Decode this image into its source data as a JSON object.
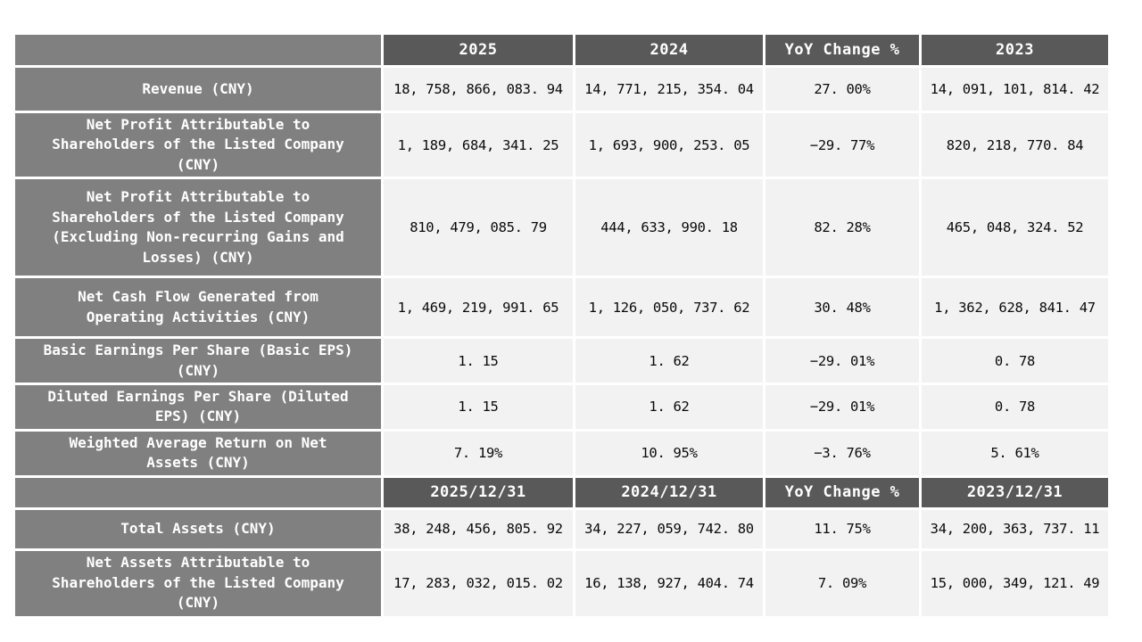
{
  "colors": {
    "column_header_bg": "#595959",
    "row_label_bg": "#808080",
    "value_cell_bg": "#f2f2f2",
    "header_text": "#ffffff",
    "value_text": "#0a0a0a",
    "grid_gap": "#ffffff"
  },
  "chart_data": {
    "type": "table",
    "sections": [
      {
        "columns": [
          "",
          "2025",
          "2024",
          "YoY Change %",
          "2023"
        ],
        "rows": [
          {
            "label": "Revenue (CNY)",
            "values": [
              "18,758,866,083.94",
              "14,771,215,354.04",
              "27.00%",
              "14,091,101,814.42"
            ]
          },
          {
            "label": "Net Profit Attributable to Shareholders of the Listed Company (CNY)",
            "values": [
              "1,189,684,341.25",
              "1,693,900,253.05",
              "-29.77%",
              "820,218,770.84"
            ]
          },
          {
            "label": "Net Profit Attributable to Shareholders of the Listed Company (Excluding Non-recurring Gains and Losses) (CNY)",
            "values": [
              "810,479,085.79",
              "444,633,990.18",
              "82.28%",
              "465,048,324.52"
            ]
          },
          {
            "label": "Net Cash Flow Generated from Operating Activities (CNY)",
            "values": [
              "1,469,219,991.65",
              "1,126,050,737.62",
              "30.48%",
              "1,362,628,841.47"
            ]
          },
          {
            "label": "Basic Earnings Per Share (Basic EPS) (CNY)",
            "values": [
              "1.15",
              "1.62",
              "-29.01%",
              "0.78"
            ]
          },
          {
            "label": "Diluted Earnings Per Share (Diluted EPS) (CNY)",
            "values": [
              "1.15",
              "1.62",
              "-29.01%",
              "0.78"
            ]
          },
          {
            "label": "Weighted Average Return on Net Assets (CNY)",
            "values": [
              "7.19%",
              "10.95%",
              "-3.76%",
              "5.61%"
            ]
          }
        ]
      },
      {
        "columns": [
          "",
          "2025/12/31",
          "2024/12/31",
          "YoY Change %",
          "2023/12/31"
        ],
        "rows": [
          {
            "label": "Total Assets (CNY)",
            "values": [
              "38,248,456,805.92",
              "34,227,059,742.80",
              "11.75%",
              "34,200,363,737.11"
            ]
          },
          {
            "label": "Net Assets Attributable to Shareholders of the Listed Company (CNY)",
            "values": [
              "17,283,032,015.02",
              "16,138,927,404.74",
              "7.09%",
              "15,000,349,121.49"
            ]
          }
        ]
      }
    ]
  },
  "table": {
    "sections": [
      {
        "header": {
          "corner": "",
          "cells": [
            "2025",
            "2024",
            "YoY Change %",
            "2023"
          ]
        },
        "rows": [
          {
            "label": "Revenue (CNY)",
            "values": [
              "18, 758, 866, 083. 94",
              "14, 771, 215, 354. 04",
              "27. 00%",
              "14, 091, 101, 814. 42"
            ]
          },
          {
            "label": "Net Profit Attributable to\nShareholders of the Listed Company\n(CNY)",
            "values": [
              "1, 189, 684, 341. 25",
              "1, 693, 900, 253. 05",
              "−29. 77%",
              "820, 218, 770. 84"
            ]
          },
          {
            "label": "Net Profit Attributable to\nShareholders of the Listed Company\n(Excluding Non-recurring Gains and\nLosses) (CNY)",
            "values": [
              "810, 479, 085. 79",
              "444, 633, 990. 18",
              "82. 28%",
              "465, 048, 324. 52"
            ]
          },
          {
            "label": "Net Cash Flow Generated from\nOperating Activities (CNY)",
            "values": [
              "1, 469, 219, 991. 65",
              "1, 126, 050, 737. 62",
              "30. 48%",
              "1, 362, 628, 841. 47"
            ]
          },
          {
            "label": "Basic Earnings Per Share (Basic EPS)\n(CNY)",
            "values": [
              "1. 15",
              "1. 62",
              "−29. 01%",
              "0. 78"
            ]
          },
          {
            "label": "Diluted Earnings Per Share (Diluted\nEPS) (CNY)",
            "values": [
              "1. 15",
              "1. 62",
              "−29. 01%",
              "0. 78"
            ]
          },
          {
            "label": "Weighted Average Return on Net\nAssets (CNY)",
            "values": [
              "7. 19%",
              "10. 95%",
              "−3. 76%",
              "5. 61%"
            ]
          }
        ]
      },
      {
        "header": {
          "corner": "",
          "cells": [
            "2025/12/31",
            "2024/12/31",
            "YoY Change %",
            "2023/12/31"
          ]
        },
        "rows": [
          {
            "label": "Total Assets (CNY)",
            "values": [
              "38, 248, 456, 805. 92",
              "34, 227, 059, 742. 80",
              "11. 75%",
              "34, 200, 363, 737. 11"
            ]
          },
          {
            "label": "Net Assets Attributable to\nShareholders of the Listed Company\n(CNY)",
            "values": [
              "17, 283, 032, 015. 02",
              "16, 138, 927, 404. 74",
              "7. 09%",
              "15, 000, 349, 121. 49"
            ]
          }
        ]
      }
    ]
  }
}
